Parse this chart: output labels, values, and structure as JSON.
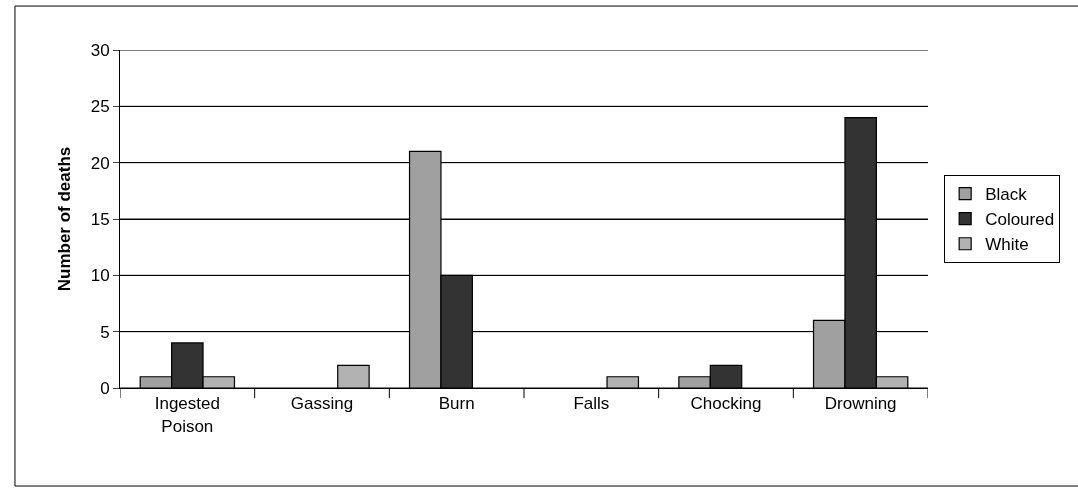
{
  "chart_data": {
    "type": "bar",
    "ylabel": "Number of deaths",
    "categories": [
      "Ingested Poison",
      "Gassing",
      "Burn",
      "Falls",
      "Chocking",
      "Drowning"
    ],
    "series": [
      {
        "name": "Black",
        "color": "#a0a0a0",
        "values": [
          1,
          0,
          21,
          0,
          1,
          6
        ]
      },
      {
        "name": "Coloured",
        "color": "#333333",
        "values": [
          4,
          0,
          10,
          0,
          2,
          24
        ]
      },
      {
        "name": "White",
        "color": "#b2b2b2",
        "values": [
          1,
          2,
          0,
          1,
          0,
          1
        ]
      }
    ],
    "ylim": [
      0,
      30
    ],
    "yticks": [
      0,
      5,
      10,
      15,
      20,
      25,
      30
    ],
    "grid": "y",
    "legend": "right"
  }
}
